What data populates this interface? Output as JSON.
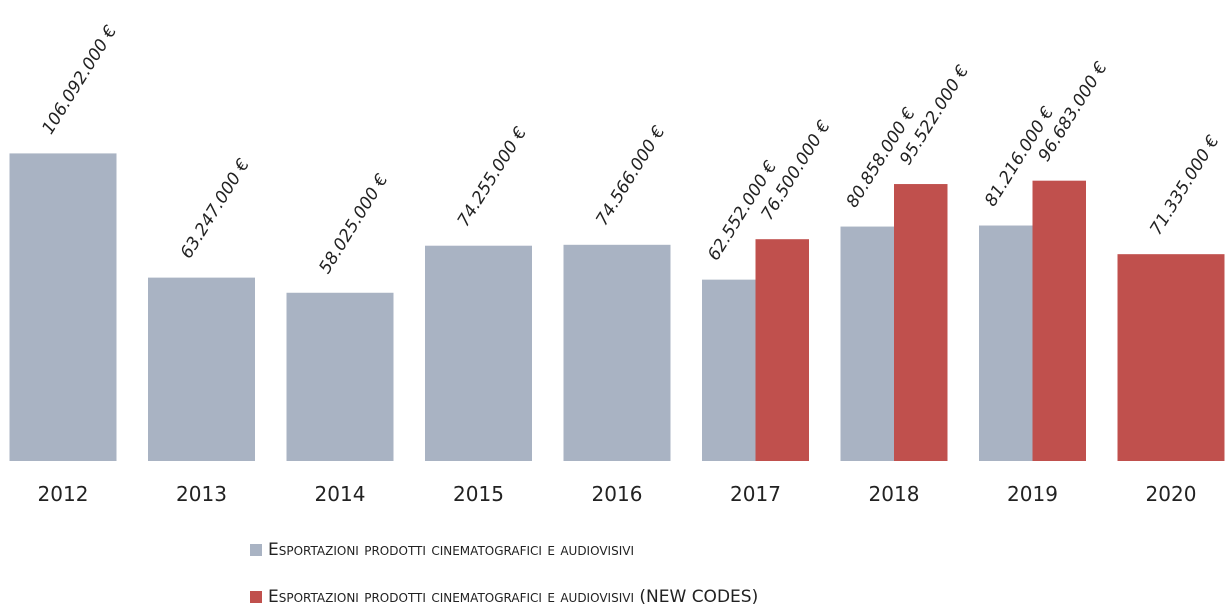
{
  "chart_data": {
    "type": "bar",
    "categories": [
      "2012",
      "2013",
      "2014",
      "2015",
      "2016",
      "2017",
      "2018",
      "2019",
      "2020"
    ],
    "series": [
      {
        "name": "Esportazioni prodotti cinematografici e audiovisivi",
        "color": "#a9b3c3",
        "values": [
          106092000,
          63247000,
          58025000,
          74255000,
          74566000,
          62552000,
          80858000,
          81216000,
          null
        ],
        "value_labels": [
          "106.092.000 €",
          "63.247.000 €",
          "58.025.000 €",
          "74.255.000 €",
          "74.566.000 €",
          "62.552.000 €",
          "80.858.000 €",
          "81.216.000 €",
          null
        ]
      },
      {
        "name": "Esportazioni prodotti cinematografici e audiovisivi (NEW CODES)",
        "color": "#c0504d",
        "values": [
          null,
          null,
          null,
          null,
          null,
          76500000,
          95522000,
          96683000,
          71335000
        ],
        "value_labels": [
          null,
          null,
          null,
          null,
          null,
          "76.500.000 €",
          "95.522.000 €",
          "96.683.000 €",
          "71.335.000 €"
        ]
      }
    ],
    "ylim": [
      0,
      159000000
    ]
  }
}
